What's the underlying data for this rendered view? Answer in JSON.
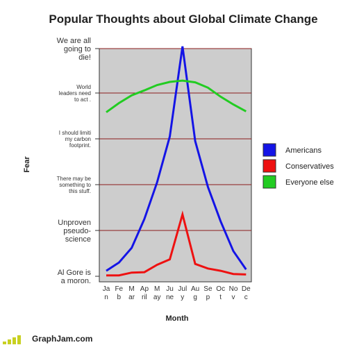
{
  "chart_data": {
    "type": "line",
    "title": "Popular Thoughts about Global Climate Change",
    "xlabel": "Month",
    "ylabel": "Fear",
    "categories": [
      [
        "Ja",
        "n"
      ],
      [
        "Fe",
        "b"
      ],
      [
        "M",
        "ar"
      ],
      [
        "Ap",
        "ril"
      ],
      [
        "M",
        "ay"
      ],
      [
        "Ju",
        "ne"
      ],
      [
        "Jul",
        "y"
      ],
      [
        "Au",
        "g"
      ],
      [
        "Se",
        "p"
      ],
      [
        "Oc",
        "t"
      ],
      [
        "No",
        "v"
      ],
      [
        "De",
        "c"
      ]
    ],
    "y_levels": [
      {
        "value": 0,
        "label": [
          "Al Gore is",
          "a moron."
        ]
      },
      {
        "value": 1,
        "label": [
          "Unproven",
          "pseudo-",
          "science"
        ]
      },
      {
        "value": 2,
        "label": [
          "There may be",
          "something to",
          "this  stuff."
        ]
      },
      {
        "value": 3,
        "label": [
          "I should limiti",
          "my carbon",
          "footprint."
        ]
      },
      {
        "value": 4,
        "label": [
          "World",
          "leaders need",
          "to act ."
        ]
      },
      {
        "value": 5,
        "label": [
          "We are all",
          "going to",
          "die!"
        ]
      }
    ],
    "ylim": [
      0,
      5
    ],
    "grid": true,
    "legend_position": "right",
    "series": [
      {
        "name": "Americans",
        "color": "#1414e6",
        "values": [
          0.12,
          0.3,
          0.62,
          1.25,
          2.05,
          3.05,
          5.05,
          2.95,
          1.95,
          1.2,
          0.55,
          0.15
        ]
      },
      {
        "name": "Conservatives",
        "color": "#ee1111",
        "values": [
          0.02,
          0.02,
          0.08,
          0.09,
          0.25,
          0.37,
          1.35,
          0.27,
          0.17,
          0.12,
          0.05,
          0.04
        ]
      },
      {
        "name": "Everyone else",
        "color": "#22cc22",
        "values": [
          3.58,
          3.78,
          3.95,
          4.06,
          4.18,
          4.25,
          4.28,
          4.24,
          4.12,
          3.92,
          3.75,
          3.6
        ]
      }
    ]
  },
  "footer": {
    "brand": "GraphJam.com"
  }
}
